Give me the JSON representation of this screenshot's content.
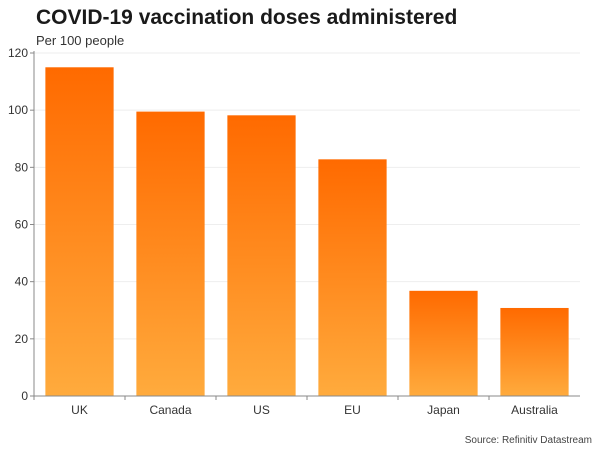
{
  "chart_data": {
    "type": "bar",
    "title": "COVID-19 vaccination doses administered",
    "subtitle": "Per 100 people",
    "categories": [
      "UK",
      "Canada",
      "US",
      "EU",
      "Japan",
      "Australia"
    ],
    "values": [
      115,
      99.5,
      98.2,
      82.8,
      36.8,
      30.8
    ],
    "xlabel": "",
    "ylabel": "",
    "ylim": [
      0,
      120
    ],
    "yticks": [
      0,
      20,
      40,
      60,
      80,
      100,
      120
    ],
    "grid": true,
    "legend": "none",
    "source": "Source: Refinitiv Datastream",
    "colors": {
      "bar_top": "#ff6a00",
      "bar_bottom": "#ffab3d",
      "grid": "#eeeeee",
      "axis": "#888888"
    }
  }
}
